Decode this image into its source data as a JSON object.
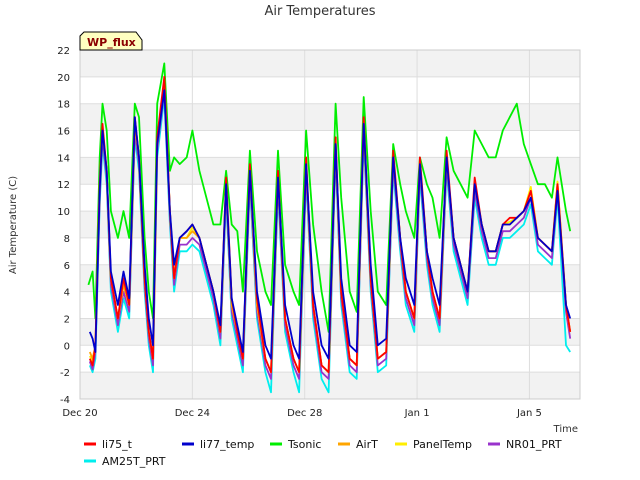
{
  "chart_data": {
    "type": "line",
    "title": "Air Temperatures",
    "xlabel": "Time",
    "ylabel": "Air Temperature (C)",
    "badge": "WP_flux",
    "xlim": [
      0,
      17.8
    ],
    "ylim": [
      -4,
      22
    ],
    "yticks": [
      -4,
      -2,
      0,
      2,
      4,
      6,
      8,
      10,
      12,
      14,
      16,
      18,
      20,
      22
    ],
    "xticks": [
      {
        "pos": 0,
        "label": "Dec 20"
      },
      {
        "pos": 4,
        "label": "Dec 24"
      },
      {
        "pos": 8,
        "label": "Dec 28"
      },
      {
        "pos": 12,
        "label": "Jan 1"
      },
      {
        "pos": 16,
        "label": "Jan 5"
      }
    ],
    "grid": true,
    "legend_position": "bottom",
    "x_unit": "days since Dec 20",
    "series": [
      {
        "name": "li75_t",
        "color": "#ff0000",
        "x": [
          0.35,
          0.45,
          0.55,
          0.7,
          0.8,
          0.95,
          1.1,
          1.35,
          1.55,
          1.75,
          1.95,
          2.1,
          2.3,
          2.45,
          2.6,
          2.75,
          3.0,
          3.2,
          3.35,
          3.55,
          3.8,
          4.0,
          4.25,
          4.5,
          4.75,
          5.0,
          5.2,
          5.4,
          5.6,
          5.8,
          6.05,
          6.3,
          6.6,
          6.8,
          7.05,
          7.3,
          7.6,
          7.8,
          8.05,
          8.3,
          8.6,
          8.85,
          9.1,
          9.3,
          9.6,
          9.85,
          10.1,
          10.35,
          10.6,
          10.9,
          11.15,
          11.4,
          11.6,
          11.9,
          12.1,
          12.35,
          12.55,
          12.8,
          13.05,
          13.3,
          13.55,
          13.8,
          14.05,
          14.3,
          14.55,
          14.8,
          15.05,
          15.3,
          15.55,
          15.8,
          16.05,
          16.3,
          16.55,
          16.8,
          17.0,
          17.3,
          17.45
        ],
        "y": [
          -1,
          -1.5,
          0,
          12,
          16.5,
          13,
          5,
          2,
          5,
          3,
          17,
          14,
          5,
          1,
          -1,
          15.5,
          20,
          10,
          5,
          8,
          8.5,
          9,
          8,
          6,
          4,
          1,
          12.5,
          3.5,
          1,
          -1,
          13.5,
          3.5,
          -1,
          -2,
          13,
          2,
          -1,
          -2,
          14,
          3,
          -1.5,
          -2,
          15.5,
          4,
          -1,
          -1.5,
          17,
          5,
          -1,
          -0.5,
          14.5,
          8,
          4,
          2,
          14,
          7,
          4,
          2,
          14.5,
          8,
          6,
          4,
          12.5,
          9,
          7,
          7,
          9,
          9.5,
          9.5,
          10,
          11.5,
          8,
          7.5,
          7,
          12,
          3,
          1
        ]
      },
      {
        "name": "li77_temp",
        "color": "#0000cc",
        "x": [
          0.35,
          0.45,
          0.55,
          0.7,
          0.8,
          0.95,
          1.1,
          1.35,
          1.55,
          1.75,
          1.95,
          2.1,
          2.3,
          2.45,
          2.6,
          2.75,
          3.0,
          3.2,
          3.35,
          3.55,
          3.8,
          4.0,
          4.25,
          4.5,
          4.75,
          5.0,
          5.2,
          5.4,
          5.6,
          5.8,
          6.05,
          6.3,
          6.6,
          6.8,
          7.05,
          7.3,
          7.6,
          7.8,
          8.05,
          8.3,
          8.6,
          8.85,
          9.1,
          9.3,
          9.6,
          9.85,
          10.1,
          10.35,
          10.6,
          10.9,
          11.15,
          11.4,
          11.6,
          11.9,
          12.1,
          12.35,
          12.55,
          12.8,
          13.05,
          13.3,
          13.55,
          13.8,
          14.05,
          14.3,
          14.55,
          14.8,
          15.05,
          15.3,
          15.55,
          15.8,
          16.05,
          16.3,
          16.55,
          16.8,
          17.0,
          17.3,
          17.45
        ],
        "y": [
          1,
          0.5,
          -0.5,
          11.5,
          16,
          13,
          5.5,
          3,
          5.5,
          3.5,
          17,
          14,
          6,
          2,
          0,
          15,
          19,
          10,
          6,
          8,
          8.5,
          9,
          8,
          6,
          4,
          1.5,
          12,
          3.5,
          1.5,
          -0.5,
          13,
          4,
          0,
          -1,
          12.5,
          3,
          0,
          -1,
          13.5,
          4,
          0,
          -1,
          15,
          5,
          0,
          -0.5,
          16.5,
          6,
          0,
          0.5,
          14,
          8,
          5,
          3,
          13.5,
          7,
          5,
          3,
          14,
          8,
          6,
          4,
          12,
          9,
          7,
          7,
          9,
          9,
          9.5,
          10,
          11,
          8,
          7.5,
          7,
          11.5,
          3,
          2
        ]
      },
      {
        "name": "Tsonic",
        "color": "#00ee00",
        "x": [
          0.3,
          0.45,
          0.55,
          0.7,
          0.8,
          0.95,
          1.1,
          1.35,
          1.55,
          1.75,
          1.95,
          2.1,
          2.3,
          2.45,
          2.6,
          2.75,
          3.0,
          3.2,
          3.35,
          3.55,
          3.8,
          4.0,
          4.25,
          4.5,
          4.75,
          5.0,
          5.2,
          5.4,
          5.6,
          5.8,
          6.05,
          6.3,
          6.6,
          6.8,
          7.05,
          7.3,
          7.6,
          7.8,
          8.05,
          8.3,
          8.6,
          8.85,
          9.1,
          9.3,
          9.6,
          9.85,
          10.1,
          10.35,
          10.6,
          10.9,
          11.15,
          11.4,
          11.6,
          11.9,
          12.1,
          12.35,
          12.55,
          12.8,
          13.05,
          13.3,
          13.55,
          13.8,
          14.05,
          14.3,
          14.55,
          14.8,
          15.05,
          15.3,
          15.55,
          15.8,
          16.05,
          16.3,
          16.55,
          16.8,
          17.0,
          17.3,
          17.45
        ],
        "y": [
          4.5,
          5.5,
          2,
          14,
          18,
          16,
          10,
          8,
          10,
          8,
          18,
          17,
          8,
          4,
          2,
          18,
          21,
          13,
          14,
          13.5,
          14,
          16,
          13,
          11,
          9,
          9,
          13,
          9,
          8.5,
          4,
          14.5,
          7,
          4,
          3,
          14.5,
          6,
          4,
          3,
          16,
          9,
          4,
          1,
          18,
          11,
          4,
          2.5,
          18.5,
          10,
          4,
          3,
          15,
          12,
          10,
          8,
          14,
          12,
          11,
          8,
          15.5,
          13,
          12,
          11,
          16,
          15,
          14,
          14,
          16,
          17,
          18,
          15,
          13.5,
          12,
          12,
          11,
          14,
          10,
          8.5
        ]
      },
      {
        "name": "AirT",
        "color": "#ffa500",
        "x": [
          0.35,
          0.45,
          0.55,
          0.7,
          0.8,
          0.95,
          1.1,
          1.35,
          1.55,
          1.75,
          1.95,
          2.1,
          2.3,
          2.45,
          2.6,
          2.75,
          3.0,
          3.2,
          3.35,
          3.55,
          3.8,
          4.0,
          4.25,
          4.5,
          4.75,
          5.0,
          5.2,
          5.4,
          5.6,
          5.8,
          6.05,
          6.3,
          6.6,
          6.8,
          7.05,
          7.3,
          7.6,
          7.8,
          8.05,
          8.3,
          8.6,
          8.85,
          9.1,
          9.3,
          9.6,
          9.85,
          10.1,
          10.35,
          10.6,
          10.9,
          11.15,
          11.4,
          11.6,
          11.9,
          12.1,
          12.35,
          12.55,
          12.8,
          13.05,
          13.3,
          13.55,
          13.8,
          14.05,
          14.3,
          14.55,
          14.8,
          15.05,
          15.3,
          15.55,
          15.8,
          16.05,
          16.3,
          16.55,
          16.8,
          17.0,
          17.3,
          17.45
        ],
        "y": [
          -0.5,
          -1,
          0,
          11.5,
          16,
          13,
          5,
          2,
          4.5,
          3,
          16.5,
          14,
          5,
          1,
          -1,
          15,
          19.5,
          10,
          5,
          8,
          8,
          8.5,
          8,
          6,
          4,
          1,
          12,
          3,
          1,
          -1,
          13,
          3,
          -1,
          -2,
          12.5,
          2,
          -1,
          -2,
          13.5,
          3,
          -1.5,
          -2,
          15,
          4,
          -1,
          -1.5,
          16.5,
          5,
          -1,
          -0.5,
          14,
          8,
          4,
          2,
          13.5,
          7,
          4,
          2,
          14,
          8,
          6,
          4,
          12,
          9,
          7,
          7,
          9,
          9,
          9.5,
          10,
          11.5,
          8,
          7.5,
          7,
          12,
          3,
          1
        ]
      },
      {
        "name": "PanelTemp",
        "color": "#ffee00",
        "x": [
          0.35,
          0.45,
          0.55,
          0.7,
          0.8,
          0.95,
          1.1,
          1.35,
          1.55,
          1.75,
          1.95,
          2.1,
          2.3,
          2.45,
          2.6,
          2.75,
          3.0,
          3.2,
          3.35,
          3.55,
          3.8,
          4.0,
          4.25,
          4.5,
          4.75,
          5.0,
          5.2,
          5.4,
          5.6,
          5.8,
          6.05,
          6.3,
          6.6,
          6.8,
          7.05,
          7.3,
          7.6,
          7.8,
          8.05,
          8.3,
          8.6,
          8.85,
          9.1,
          9.3,
          9.6,
          9.85,
          10.1,
          10.35,
          10.6,
          10.9,
          11.15,
          11.4,
          11.6,
          11.9,
          12.1,
          12.35,
          12.55,
          12.8,
          13.05,
          13.3,
          13.55,
          13.8,
          14.05,
          14.3,
          14.55,
          14.8,
          15.05,
          15.3,
          15.55,
          15.8,
          16.05,
          16.3,
          16.55,
          16.8,
          17.0,
          17.3,
          17.45
        ],
        "y": [
          -0.8,
          -1.2,
          -0.2,
          11.8,
          16.2,
          13,
          5,
          2,
          4.5,
          3,
          16.8,
          14,
          5,
          1,
          -1,
          15,
          19.8,
          10,
          5,
          8,
          8,
          8.8,
          8,
          6,
          4,
          1,
          12.2,
          3,
          1,
          -1,
          13.2,
          3,
          -1,
          -2,
          12.8,
          2,
          -1,
          -2,
          13.8,
          3,
          -1.5,
          -2,
          15.2,
          4,
          -1,
          -1.5,
          16.8,
          5,
          -1,
          -0.5,
          14.2,
          8,
          4,
          2,
          13.8,
          7,
          4,
          2,
          14.2,
          8,
          6,
          4,
          12.2,
          9,
          7,
          7,
          9,
          9.2,
          9.5,
          10,
          11.8,
          8,
          7.5,
          7,
          12.2,
          3,
          1
        ]
      },
      {
        "name": "NR01_PRT",
        "color": "#9933cc",
        "x": [
          0.35,
          0.45,
          0.55,
          0.7,
          0.8,
          0.95,
          1.1,
          1.35,
          1.55,
          1.75,
          1.95,
          2.1,
          2.3,
          2.45,
          2.6,
          2.75,
          3.0,
          3.2,
          3.35,
          3.55,
          3.8,
          4.0,
          4.25,
          4.5,
          4.75,
          5.0,
          5.2,
          5.4,
          5.6,
          5.8,
          6.05,
          6.3,
          6.6,
          6.8,
          7.05,
          7.3,
          7.6,
          7.8,
          8.05,
          8.3,
          8.6,
          8.85,
          9.1,
          9.3,
          9.6,
          9.85,
          10.1,
          10.35,
          10.6,
          10.9,
          11.15,
          11.4,
          11.6,
          11.9,
          12.1,
          12.35,
          12.55,
          12.8,
          13.05,
          13.3,
          13.55,
          13.8,
          14.05,
          14.3,
          14.55,
          14.8,
          15.05,
          15.3,
          15.55,
          15.8,
          16.05,
          16.3,
          16.55,
          16.8,
          17.0,
          17.3,
          17.45
        ],
        "y": [
          -1.2,
          -1.8,
          -0.5,
          11,
          15.5,
          12.5,
          4.5,
          1.5,
          4,
          2.5,
          16,
          13.5,
          4.5,
          0.5,
          -1.5,
          14.5,
          19,
          9.5,
          4.5,
          7.5,
          7.5,
          8,
          7.5,
          5.5,
          3.5,
          0.5,
          11.5,
          2.5,
          0.5,
          -1.5,
          12.5,
          2.5,
          -1.5,
          -2.5,
          12,
          1.5,
          -1.5,
          -2.5,
          13,
          2.5,
          -2,
          -2.5,
          14.5,
          3.5,
          -1.5,
          -2,
          16,
          4.5,
          -1.5,
          -1,
          13.5,
          7.5,
          3.5,
          1.5,
          13,
          6.5,
          3.5,
          1.5,
          13.5,
          7.5,
          5.5,
          3.5,
          11.5,
          8.5,
          6.5,
          6.5,
          8.5,
          8.5,
          9,
          9.5,
          11,
          7.5,
          7,
          6.5,
          11.5,
          2.5,
          0.5
        ]
      },
      {
        "name": "AM25T_PRT",
        "color": "#00eeee",
        "x": [
          0.35,
          0.45,
          0.55,
          0.7,
          0.8,
          0.95,
          1.1,
          1.35,
          1.55,
          1.75,
          1.95,
          2.1,
          2.3,
          2.45,
          2.6,
          2.75,
          3.0,
          3.2,
          3.35,
          3.55,
          3.8,
          4.0,
          4.25,
          4.5,
          4.75,
          5.0,
          5.2,
          5.4,
          5.6,
          5.8,
          6.05,
          6.3,
          6.6,
          6.8,
          7.05,
          7.3,
          7.6,
          7.8,
          8.05,
          8.3,
          8.6,
          8.85,
          9.1,
          9.3,
          9.6,
          9.85,
          10.1,
          10.35,
          10.6,
          10.9,
          11.15,
          11.4,
          11.6,
          11.9,
          12.1,
          12.35,
          12.55,
          12.8,
          13.05,
          13.3,
          13.55,
          13.8,
          14.05,
          14.3,
          14.55,
          14.8,
          15.05,
          15.3,
          15.55,
          15.8,
          16.05,
          16.3,
          16.55,
          16.8,
          17.0,
          17.3,
          17.45
        ],
        "y": [
          -1.5,
          -2,
          -1,
          10.5,
          15,
          12,
          4,
          1,
          3.5,
          2,
          15.5,
          13,
          4,
          0,
          -2,
          14,
          18.5,
          9,
          4,
          7,
          7,
          7.5,
          7,
          5,
          3,
          0,
          11,
          2,
          0,
          -2,
          12,
          2,
          -2,
          -3.5,
          11.5,
          1,
          -2,
          -3.5,
          12.5,
          2,
          -2.5,
          -3.5,
          14,
          3,
          -2,
          -2.5,
          15.5,
          4,
          -2,
          -1.5,
          13,
          7,
          3,
          1,
          12.5,
          6,
          3,
          1,
          13,
          7,
          5,
          3,
          11,
          8,
          6,
          6,
          8,
          8,
          8.5,
          9,
          10.5,
          7,
          6.5,
          6,
          11,
          0,
          -0.5
        ]
      }
    ]
  }
}
